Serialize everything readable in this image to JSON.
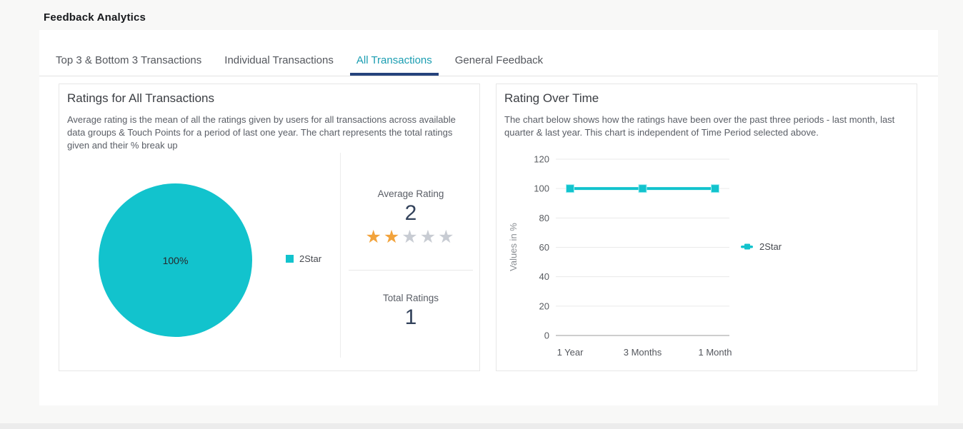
{
  "page": {
    "title": "Feedback Analytics",
    "background": "#f8f8f7",
    "footer_strip_color": "#ececec"
  },
  "colors": {
    "accent_teal": "#12c3cd",
    "active_tab_text": "#1a9db1",
    "active_tab_underline": "#26437c",
    "star_filled": "#f2a33c",
    "star_empty": "#c8ccd3",
    "stat_number": "#33425b"
  },
  "tabs": [
    {
      "label": "Top 3 & Bottom 3 Transactions",
      "active": false
    },
    {
      "label": "Individual Transactions",
      "active": false
    },
    {
      "label": "All Transactions",
      "active": true
    },
    {
      "label": "General Feedback",
      "active": false
    }
  ],
  "left_panel": {
    "title": "Ratings for All Transactions",
    "description": "Average rating is the mean of all the ratings given by users for all transactions across available data groups & Touch Points for a period of last one year. The chart represents the total ratings given and their % break up",
    "stats": {
      "average_rating_label": "Average Rating",
      "average_rating_value": "2",
      "stars_filled": 2,
      "stars_total": 5,
      "total_ratings_label": "Total Ratings",
      "total_ratings_value": "1"
    }
  },
  "right_panel": {
    "title": "Rating Over Time",
    "description": "The chart below shows how the ratings have been over the past three periods - last month, last quarter & last year. This chart is independent of Time Period selected above."
  },
  "chart_data": [
    {
      "type": "pie",
      "title": "Ratings for All Transactions",
      "slices": [
        {
          "label": "2Star",
          "value": 100,
          "display": "100%",
          "color": "#12c3cd"
        }
      ],
      "legend": [
        {
          "label": "2Star",
          "color": "#12c3cd"
        }
      ],
      "legend_position": "right"
    },
    {
      "type": "line",
      "title": "Rating Over Time",
      "categories": [
        "1 Year",
        "3 Months",
        "1 Month"
      ],
      "series": [
        {
          "name": "2Star",
          "values": [
            100,
            100,
            100
          ],
          "color": "#12c3cd"
        }
      ],
      "xlabel": "",
      "ylabel": "Values in %",
      "yticks": [
        0,
        20,
        40,
        60,
        80,
        100,
        120
      ],
      "ylim": [
        0,
        120
      ],
      "grid": true,
      "legend_position": "right",
      "marker": "square"
    }
  ]
}
